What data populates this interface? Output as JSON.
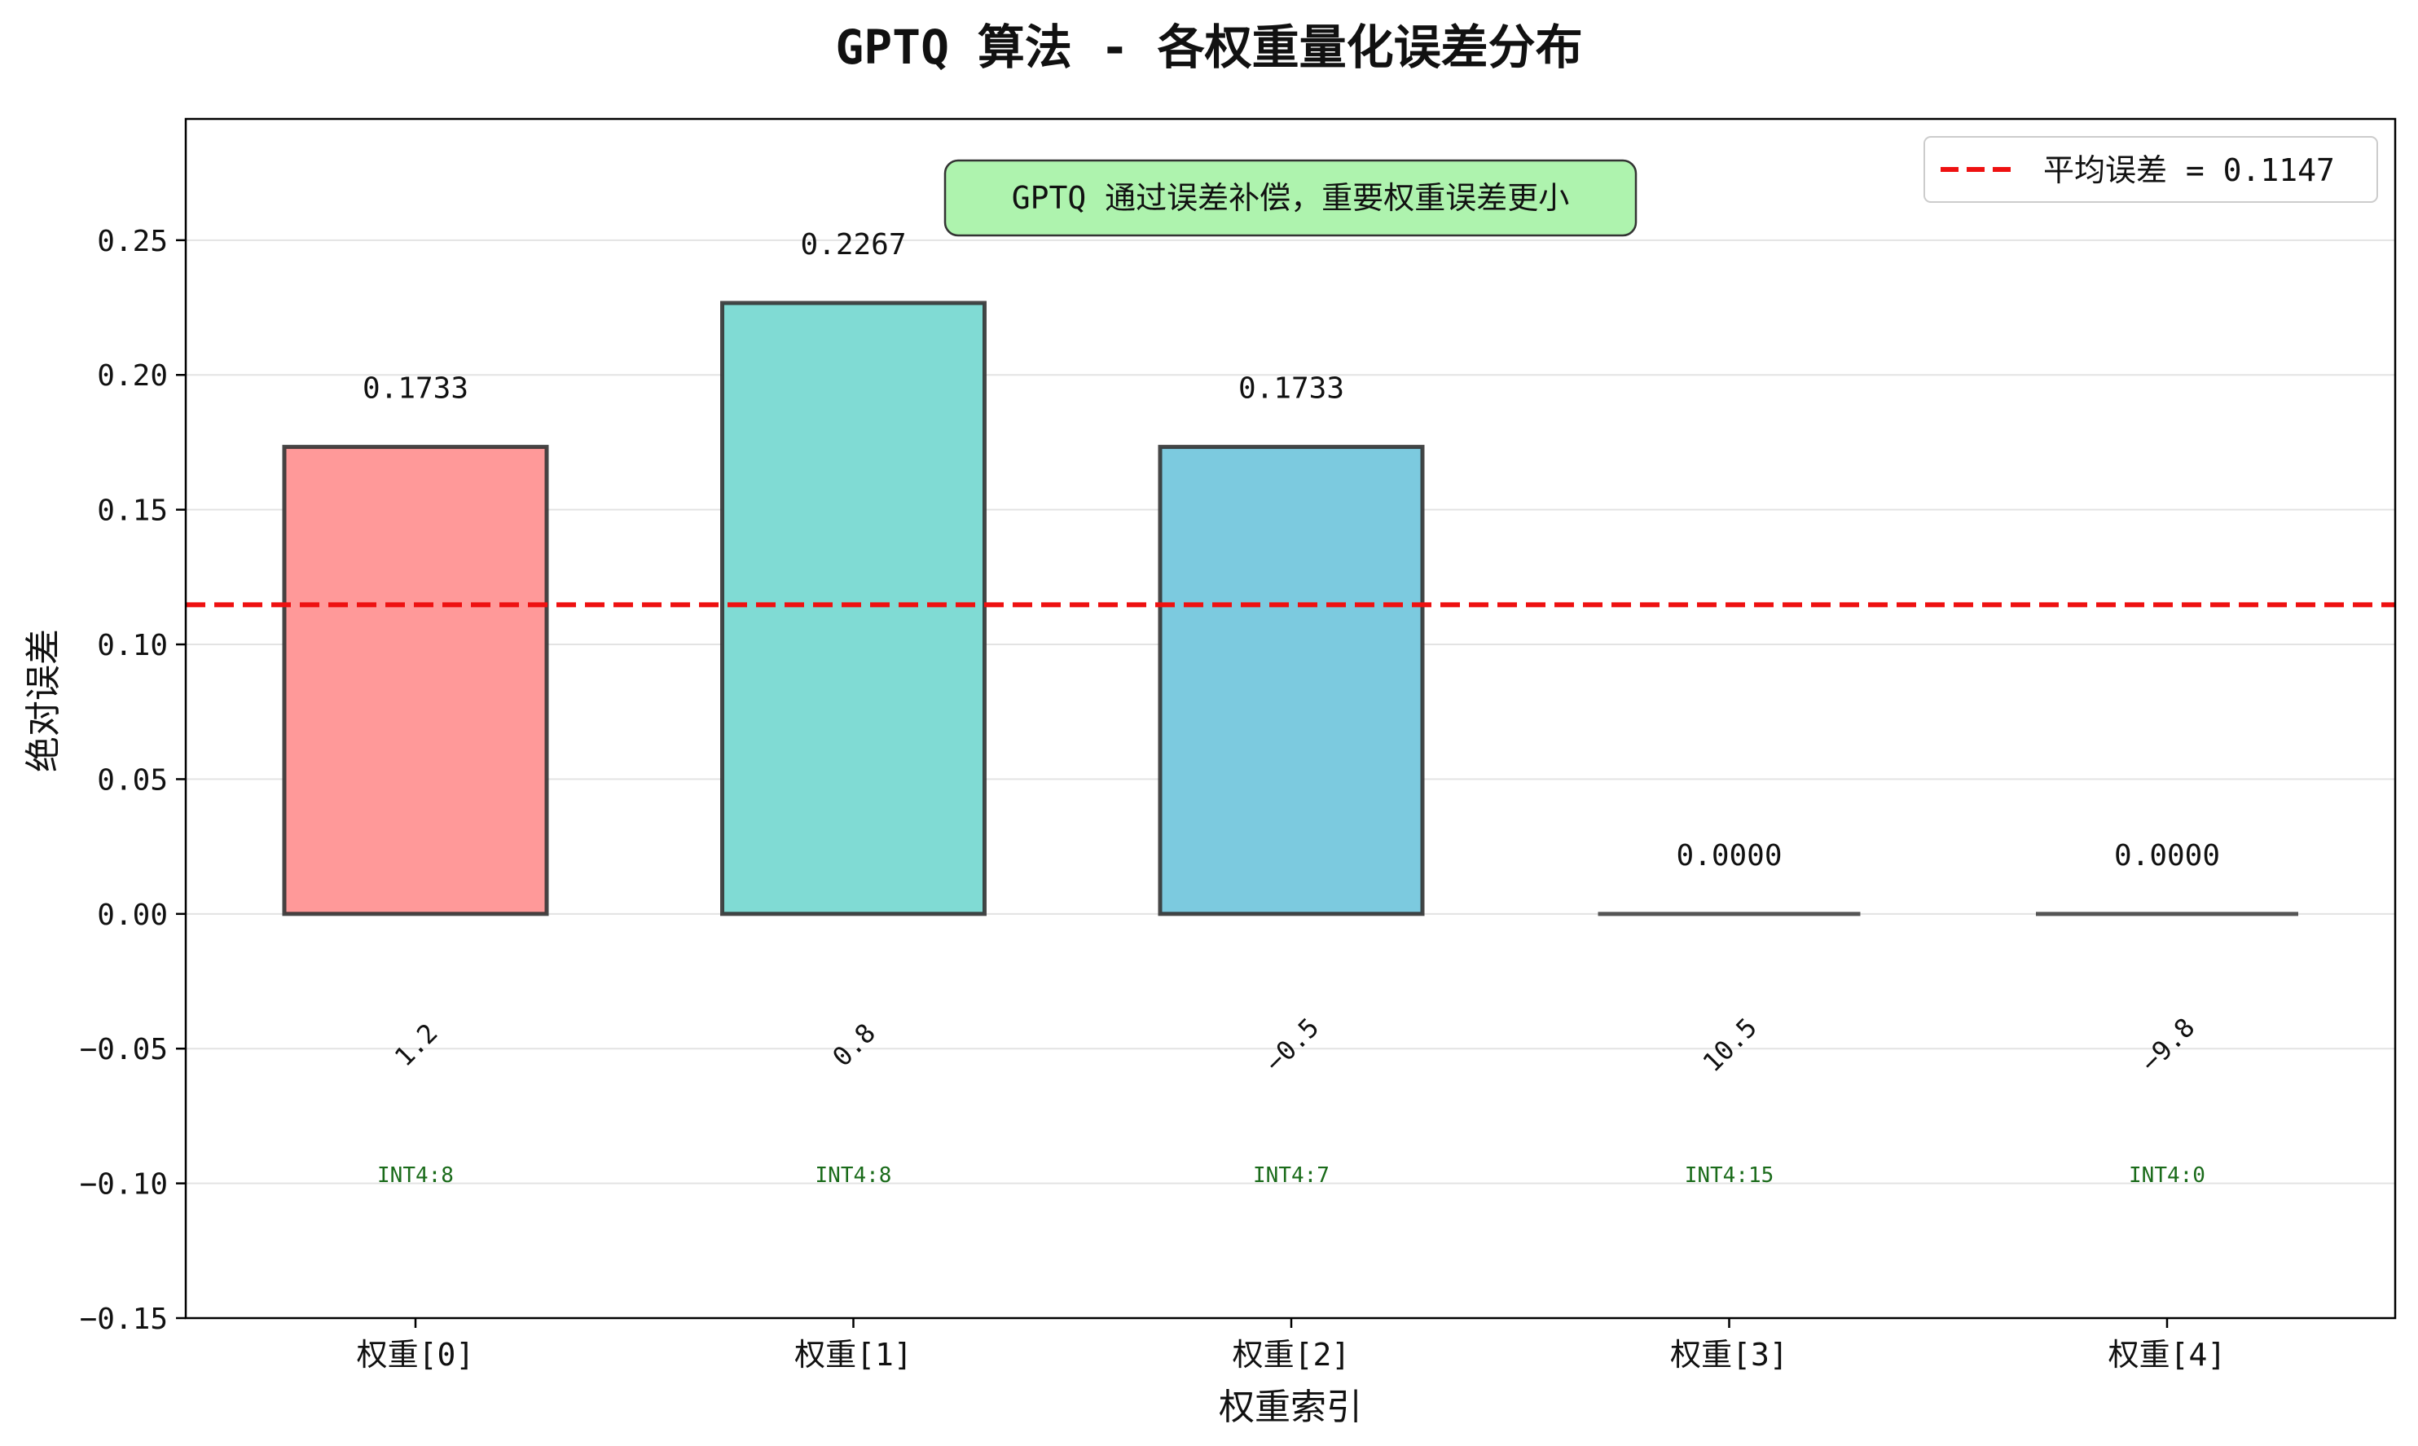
{
  "chart_data": {
    "type": "bar",
    "title": "GPTQ 算法 - 各权重量化误差分布",
    "xlabel": "权重索引",
    "ylabel": "绝对误差",
    "categories": [
      "权重[0]",
      "权重[1]",
      "权重[2]",
      "权重[3]",
      "权重[4]"
    ],
    "values": [
      0.1733,
      0.2267,
      0.1733,
      0.0,
      0.0
    ],
    "value_labels": [
      "0.1733",
      "0.2267",
      "0.1733",
      "0.0000",
      "0.0000"
    ],
    "original_weights": [
      "1.2",
      "0.8",
      "−0.5",
      "10.5",
      "−9.8"
    ],
    "int4_labels": [
      "INT4:8",
      "INT4:8",
      "INT4:7",
      "INT4:15",
      "INT4:0"
    ],
    "bar_colors": [
      "#ff9999",
      "#80dbd4",
      "#7ccadf",
      "#cccccc",
      "#cccccc"
    ],
    "ylim": [
      -0.15,
      0.295
    ],
    "yticks": [
      -0.15,
      -0.1,
      -0.05,
      0.0,
      0.05,
      0.1,
      0.15,
      0.2,
      0.25
    ],
    "ytick_labels": [
      "−0.15",
      "−0.10",
      "−0.05",
      "0.00",
      "0.05",
      "0.10",
      "0.15",
      "0.20",
      "0.25"
    ],
    "mean_line": {
      "value": 0.1147,
      "label": "平均误差 = 0.1147",
      "color": "#ee1111"
    },
    "annotation": "GPTQ 通过误差补偿，重要权重误差更小",
    "grid": "horizontal",
    "legend_position": "top-right"
  }
}
